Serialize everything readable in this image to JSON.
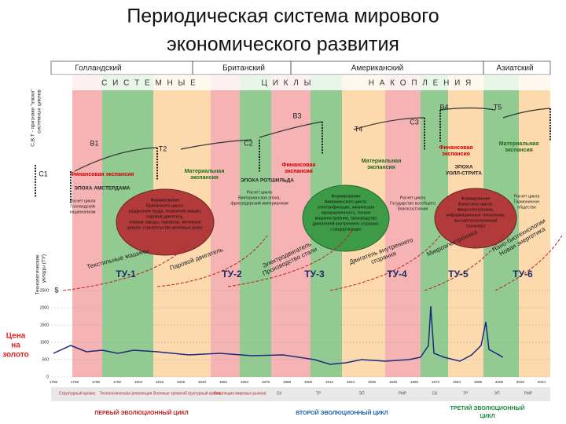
{
  "title": [
    "Периодическая система мирового",
    "экономического развития"
  ],
  "hegemons": [
    "Голландский",
    "Британский",
    "Американский",
    "Азиатский"
  ],
  "cycles_heading": [
    "С И С Т Е М Н Ы Е",
    "Ц И К Л Ы",
    "Н А К О П Л Е Н И Я"
  ],
  "side_labels": {
    "epochs": [
      "С,В,Т - признаки \"эпохи\"",
      "системных циклов"
    ],
    "tech": [
      "Технологические",
      "уклады (ТУ)"
    ],
    "gold": [
      "Цена",
      "на",
      "золото"
    ],
    "currency": "$"
  },
  "markers": [
    "В1",
    "Т2",
    "С2",
    "В3",
    "Т4",
    "С3",
    "В4",
    "Т5",
    "С1"
  ],
  "phases": [
    [
      "Финансовая экспансия"
    ],
    [
      "Материальная",
      "экспансия"
    ],
    [
      "Финансовая",
      "экспансия"
    ],
    [
      "Материальная",
      "экспансия"
    ],
    [
      "Финансовая",
      "экспансия"
    ],
    [
      "Материальная",
      "экспансия"
    ]
  ],
  "epochs": [
    "ЭПОХА АМСТЕРДАМА",
    "ЭПОХА РОТШИЛЬДА",
    [
      "ЭПОХА",
      "УОЛЛ-СТРИТА"
    ]
  ],
  "descriptions": [
    [
      "Расчет цикла",
      "Голландский",
      "национализм"
    ],
    [
      "Формирование",
      "Британского цикла:",
      "раздвоение труда, появление машин,",
      "паровой двигатель,",
      "первые заводы, паровозы, железные",
      "дороги, строительство железных дорог"
    ],
    [
      "Расчет цикла",
      "Викторианская эпоха,",
      "фритредерский империализм"
    ],
    [
      "Формирование",
      "Американского цикла:",
      "электрификация, химическая",
      "промышленность, точное",
      "машиностроение, производство",
      "двигателей внутреннего сгорания,",
      "стандартизация"
    ],
    [
      "Расчет цикла",
      "Государство всеобщего",
      "благосостояния"
    ],
    [
      "Формирование",
      "Азиатского цикла:",
      "микроэлектроника,",
      "информационные технологии,",
      "высокотехнологичный",
      "транспорт"
    ],
    [
      "Расчет цикла",
      "Гармоничное",
      "общество"
    ]
  ],
  "tech_modes": [
    "ТУ-1",
    "ТУ-2",
    "ТУ-3",
    "ТУ-4",
    "ТУ-5",
    "ТУ-6"
  ],
  "technologies": [
    [
      "Текстильные машины"
    ],
    [
      "Паровой двигатель"
    ],
    [
      "Электродвигатель",
      "Производство стали"
    ],
    [
      "Двигатель внутреннего",
      "сгорания"
    ],
    [
      "Микроэлектроника"
    ],
    [
      "Нано-биотехнологии",
      "Новая энергетика"
    ]
  ],
  "gold_axis": [
    "2500",
    "2000",
    "1500",
    "1000",
    "500",
    "0"
  ],
  "years": [
    "1756",
    "1768",
    "1780",
    "1792",
    "1804",
    "1816",
    "1828",
    "1840",
    "1852",
    "1864",
    "1876",
    "1888",
    "1900",
    "1912",
    "1924",
    "1936",
    "1948",
    "1960",
    "1972",
    "1984",
    "1996",
    "2008",
    "2020",
    "2044"
  ],
  "phase_row": [
    "Структурный кризис",
    "Технологическая революция",
    "Военные тревоги",
    "Структурный кризис",
    "Революция мировых рынков",
    "СК",
    "ТР",
    "ЭП",
    "РМР",
    "СК",
    "ТР",
    "ЭП",
    "РМР"
  ],
  "evolution_cycles": [
    [
      "ПЕРВЫЙ ЭВОЛЮЦИОННЫЙ ЦИКЛ"
    ],
    [
      "ВТОРОЙ ЭВОЛЮЦИОННЫЙ ЦИКЛ"
    ],
    [
      "ТРЕТИЙ ЭВОЛЮЦИОННЫЙ",
      "ЦИКЛ"
    ]
  ]
}
